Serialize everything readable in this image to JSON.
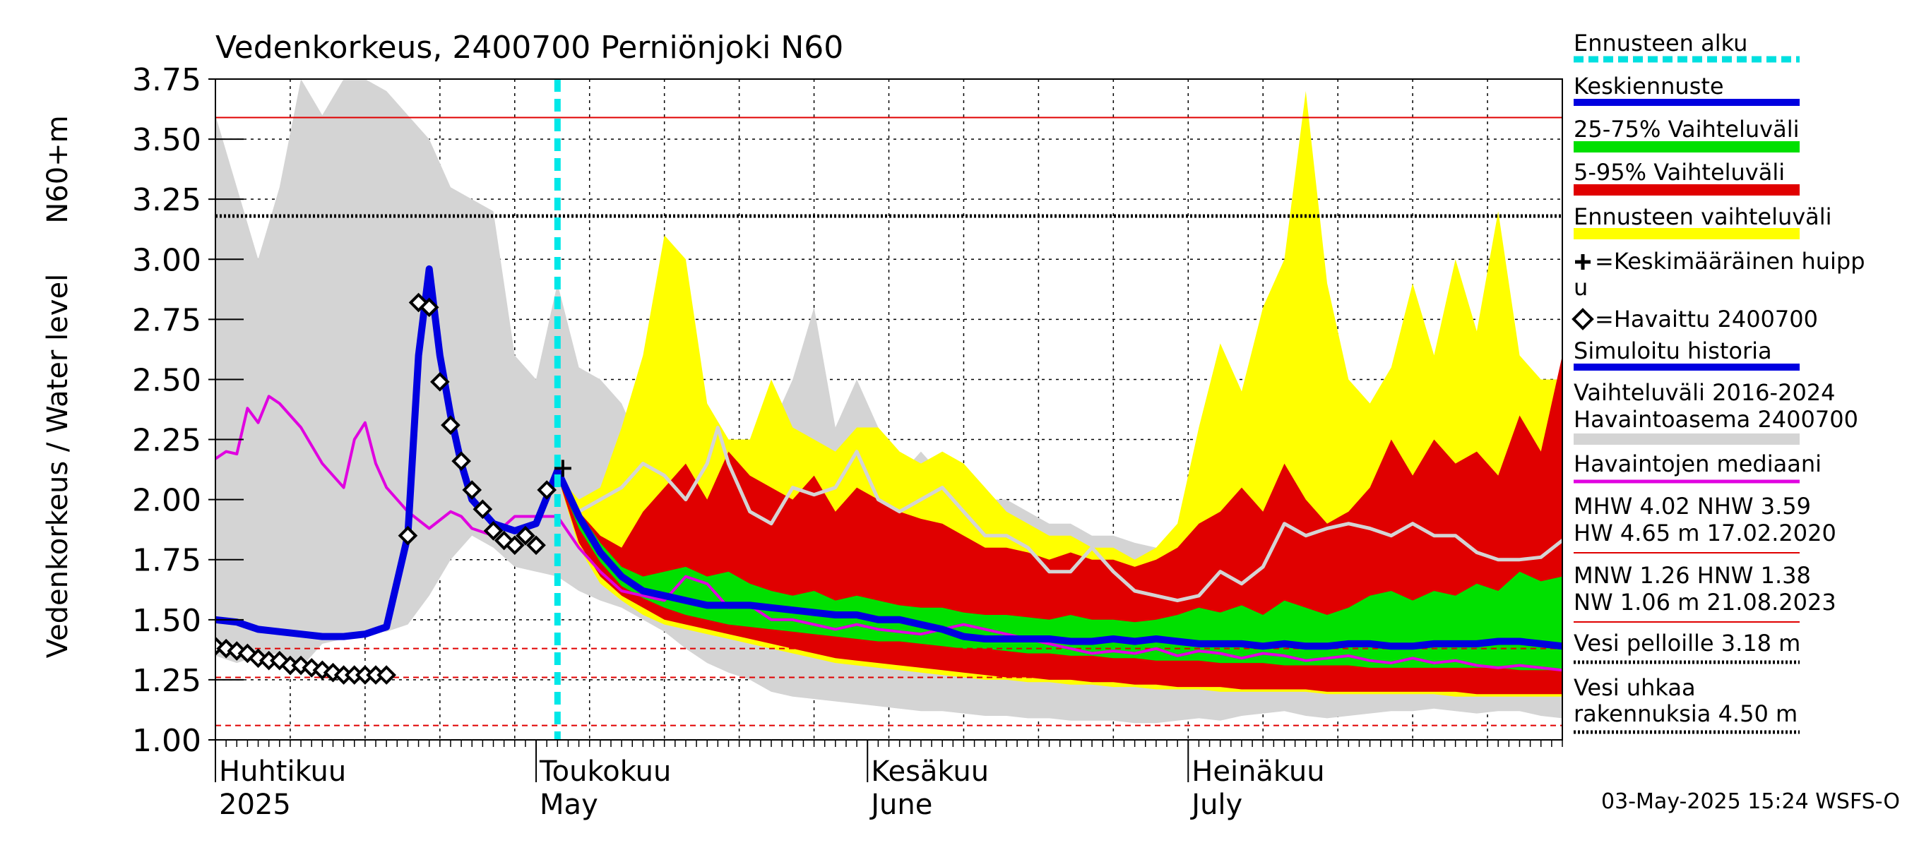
{
  "chart_data": {
    "type": "area",
    "title": "Vedenkorkeus, 2400700 Perniönjoki N60",
    "ylabel": "Vedenkorkeus / Water level",
    "ylabel_unit": "N60+m",
    "ylim": [
      1.0,
      3.75
    ],
    "y_ticks": [
      "1.00",
      "1.25",
      "1.50",
      "1.75",
      "2.00",
      "2.25",
      "2.50",
      "2.75",
      "3.00",
      "3.25",
      "3.50",
      "3.75"
    ],
    "xlim_days": [
      0,
      126
    ],
    "x_month_labels": [
      {
        "day": 0,
        "fi": "Huhtikuu",
        "en": "2025"
      },
      {
        "day": 30,
        "fi": "Toukokuu",
        "en": "May"
      },
      {
        "day": 61,
        "fi": "Kesäkuu",
        "en": "June"
      },
      {
        "day": 91,
        "fi": "Heinäkuu",
        "en": "July"
      }
    ],
    "forecast_start_day": 32,
    "reference_lines": [
      {
        "name": "NHW",
        "value": 3.59,
        "color": "#e00000",
        "style": "solid"
      },
      {
        "name": "Vesi pelloille",
        "value": 3.18,
        "color": "#000000",
        "style": "dotted"
      },
      {
        "name": "HNW",
        "value": 1.38,
        "color": "#e00000",
        "style": "dashed"
      },
      {
        "name": "MNW",
        "value": 1.26,
        "color": "#e00000",
        "style": "dashed"
      },
      {
        "name": "NW",
        "value": 1.06,
        "color": "#e00000",
        "style": "dashed"
      }
    ],
    "history_range": {
      "x": [
        0,
        2,
        4,
        6,
        8,
        10,
        12,
        14,
        16,
        18,
        20,
        22,
        24,
        26,
        28,
        30,
        32,
        34,
        36,
        38,
        40,
        42,
        44,
        46,
        48,
        50,
        52,
        54,
        56,
        58,
        60,
        62,
        64,
        66,
        68,
        70,
        72,
        74,
        76,
        78,
        80,
        82,
        84,
        86,
        88,
        90,
        92,
        94,
        96,
        98,
        100,
        102,
        104,
        106,
        108,
        110,
        112,
        114,
        116,
        118,
        120,
        122,
        124,
        126
      ],
      "lower": [
        1.35,
        1.32,
        1.35,
        1.36,
        1.3,
        1.4,
        1.42,
        1.45,
        1.45,
        1.48,
        1.6,
        1.75,
        1.85,
        1.8,
        1.72,
        1.7,
        1.68,
        1.62,
        1.58,
        1.55,
        1.5,
        1.45,
        1.38,
        1.32,
        1.28,
        1.25,
        1.2,
        1.18,
        1.17,
        1.16,
        1.15,
        1.14,
        1.13,
        1.12,
        1.12,
        1.11,
        1.1,
        1.1,
        1.09,
        1.09,
        1.08,
        1.08,
        1.08,
        1.07,
        1.07,
        1.08,
        1.09,
        1.08,
        1.1,
        1.11,
        1.12,
        1.1,
        1.09,
        1.1,
        1.11,
        1.12,
        1.12,
        1.13,
        1.12,
        1.11,
        1.12,
        1.12,
        1.1,
        1.09
      ],
      "upper": [
        3.6,
        3.3,
        3.0,
        3.3,
        3.75,
        3.6,
        3.75,
        3.75,
        3.7,
        3.6,
        3.5,
        3.3,
        3.25,
        3.2,
        2.6,
        2.5,
        2.9,
        2.55,
        2.5,
        2.4,
        2.2,
        2.15,
        2.12,
        2.1,
        2.2,
        2.15,
        2.3,
        2.5,
        2.8,
        2.3,
        2.5,
        2.3,
        2.1,
        2.2,
        2.1,
        2.05,
        2.0,
        2.0,
        1.95,
        1.9,
        1.9,
        1.85,
        1.85,
        1.82,
        1.8,
        1.85,
        1.9,
        1.85,
        1.8,
        1.78,
        1.75,
        1.8,
        1.78,
        1.75,
        1.72,
        1.72,
        1.7,
        1.72,
        1.7,
        1.68,
        1.7,
        1.72,
        1.68,
        1.7
      ]
    },
    "forecast_range": {
      "x": [
        32,
        34,
        36,
        38,
        40,
        42,
        44,
        46,
        48,
        50,
        52,
        54,
        56,
        58,
        60,
        62,
        64,
        66,
        68,
        70,
        72,
        74,
        76,
        78,
        80,
        82,
        84,
        86,
        88,
        90,
        92,
        94,
        96,
        98,
        100,
        102,
        104,
        106,
        108,
        110,
        112,
        114,
        116,
        118,
        120,
        122,
        124,
        126
      ],
      "lower": [
        2.1,
        1.8,
        1.65,
        1.58,
        1.52,
        1.48,
        1.46,
        1.44,
        1.42,
        1.4,
        1.38,
        1.36,
        1.34,
        1.32,
        1.31,
        1.3,
        1.29,
        1.28,
        1.27,
        1.26,
        1.25,
        1.25,
        1.24,
        1.24,
        1.23,
        1.23,
        1.22,
        1.22,
        1.21,
        1.21,
        1.21,
        1.2,
        1.2,
        1.2,
        1.2,
        1.2,
        1.19,
        1.19,
        1.19,
        1.19,
        1.19,
        1.19,
        1.18,
        1.18,
        1.18,
        1.18,
        1.18,
        1.18
      ],
      "upper": [
        2.1,
        2.0,
        2.05,
        2.3,
        2.6,
        3.1,
        3.0,
        2.4,
        2.25,
        2.25,
        2.5,
        2.3,
        2.25,
        2.2,
        2.3,
        2.3,
        2.2,
        2.15,
        2.2,
        2.15,
        2.05,
        1.95,
        1.9,
        1.85,
        1.85,
        1.8,
        1.8,
        1.75,
        1.8,
        1.9,
        2.3,
        2.65,
        2.45,
        2.8,
        3.0,
        3.7,
        2.9,
        2.5,
        2.4,
        2.55,
        2.9,
        2.6,
        3.0,
        2.7,
        3.2,
        2.6,
        2.5,
        2.5
      ]
    },
    "p5_95_range": {
      "x": [
        32,
        34,
        36,
        38,
        40,
        42,
        44,
        46,
        48,
        50,
        52,
        54,
        56,
        58,
        60,
        62,
        64,
        66,
        68,
        70,
        72,
        74,
        76,
        78,
        80,
        82,
        84,
        86,
        88,
        90,
        92,
        94,
        96,
        98,
        100,
        102,
        104,
        106,
        108,
        110,
        112,
        114,
        116,
        118,
        120,
        122,
        124,
        126
      ],
      "lower": [
        2.1,
        1.82,
        1.68,
        1.6,
        1.55,
        1.5,
        1.48,
        1.46,
        1.44,
        1.42,
        1.4,
        1.38,
        1.36,
        1.34,
        1.33,
        1.32,
        1.31,
        1.3,
        1.29,
        1.28,
        1.27,
        1.26,
        1.26,
        1.25,
        1.25,
        1.24,
        1.24,
        1.23,
        1.23,
        1.22,
        1.22,
        1.22,
        1.21,
        1.21,
        1.21,
        1.21,
        1.2,
        1.2,
        1.2,
        1.2,
        1.2,
        1.2,
        1.2,
        1.19,
        1.19,
        1.19,
        1.19,
        1.19
      ],
      "upper": [
        2.1,
        1.95,
        1.85,
        1.8,
        1.95,
        2.05,
        2.15,
        2.0,
        2.2,
        2.1,
        2.05,
        2.0,
        2.1,
        1.95,
        2.05,
        2.0,
        1.95,
        1.92,
        1.9,
        1.85,
        1.8,
        1.8,
        1.78,
        1.75,
        1.78,
        1.75,
        1.75,
        1.72,
        1.75,
        1.8,
        1.9,
        1.95,
        2.05,
        1.95,
        2.15,
        2.0,
        1.9,
        1.95,
        2.05,
        2.25,
        2.1,
        2.25,
        2.15,
        2.2,
        2.1,
        2.35,
        2.2,
        2.6
      ]
    },
    "p25_75_range": {
      "x": [
        32,
        34,
        36,
        38,
        40,
        42,
        44,
        46,
        48,
        50,
        52,
        54,
        56,
        58,
        60,
        62,
        64,
        66,
        68,
        70,
        72,
        74,
        76,
        78,
        80,
        82,
        84,
        86,
        88,
        90,
        92,
        94,
        96,
        98,
        100,
        102,
        104,
        106,
        108,
        110,
        112,
        114,
        116,
        118,
        120,
        122,
        124,
        126
      ],
      "lower": [
        2.1,
        1.88,
        1.74,
        1.64,
        1.59,
        1.55,
        1.52,
        1.5,
        1.48,
        1.47,
        1.46,
        1.45,
        1.44,
        1.43,
        1.42,
        1.41,
        1.41,
        1.4,
        1.39,
        1.38,
        1.38,
        1.37,
        1.36,
        1.36,
        1.35,
        1.35,
        1.34,
        1.34,
        1.33,
        1.33,
        1.33,
        1.32,
        1.32,
        1.32,
        1.31,
        1.31,
        1.31,
        1.31,
        1.3,
        1.3,
        1.3,
        1.3,
        1.3,
        1.3,
        1.3,
        1.29,
        1.29,
        1.29
      ],
      "upper": [
        2.1,
        1.95,
        1.82,
        1.72,
        1.68,
        1.7,
        1.72,
        1.68,
        1.7,
        1.65,
        1.62,
        1.6,
        1.62,
        1.58,
        1.6,
        1.58,
        1.56,
        1.55,
        1.55,
        1.53,
        1.52,
        1.52,
        1.51,
        1.5,
        1.52,
        1.5,
        1.5,
        1.49,
        1.5,
        1.52,
        1.55,
        1.53,
        1.56,
        1.52,
        1.58,
        1.55,
        1.52,
        1.55,
        1.6,
        1.62,
        1.58,
        1.62,
        1.6,
        1.65,
        1.62,
        1.7,
        1.66,
        1.68
      ]
    },
    "series": [
      {
        "name": "Keskiennuste",
        "color": "#0000e0",
        "x": [
          0,
          2,
          4,
          6,
          8,
          10,
          12,
          14,
          16,
          18,
          19,
          20,
          21,
          22,
          23,
          24,
          26,
          28,
          30,
          32,
          34,
          36,
          38,
          40,
          42,
          44,
          46,
          48,
          50,
          52,
          54,
          56,
          58,
          60,
          62,
          64,
          66,
          68,
          70,
          72,
          74,
          76,
          78,
          80,
          82,
          84,
          86,
          88,
          90,
          92,
          94,
          96,
          98,
          100,
          102,
          104,
          106,
          108,
          110,
          112,
          114,
          116,
          118,
          120,
          122,
          124,
          126
        ],
        "values": [
          1.5,
          1.49,
          1.46,
          1.45,
          1.44,
          1.43,
          1.43,
          1.44,
          1.47,
          1.85,
          2.6,
          2.96,
          2.6,
          2.35,
          2.15,
          2.0,
          1.9,
          1.87,
          1.9,
          2.12,
          1.93,
          1.78,
          1.68,
          1.62,
          1.6,
          1.58,
          1.56,
          1.56,
          1.56,
          1.55,
          1.54,
          1.53,
          1.52,
          1.52,
          1.5,
          1.5,
          1.48,
          1.46,
          1.43,
          1.42,
          1.42,
          1.42,
          1.42,
          1.41,
          1.41,
          1.42,
          1.41,
          1.42,
          1.41,
          1.4,
          1.4,
          1.4,
          1.39,
          1.4,
          1.39,
          1.39,
          1.4,
          1.4,
          1.39,
          1.39,
          1.4,
          1.4,
          1.4,
          1.41,
          1.41,
          1.4,
          1.39
        ]
      },
      {
        "name": "Havaintojen mediaani",
        "color": "#e000e0",
        "x": [
          0,
          1,
          2,
          3,
          4,
          5,
          6,
          8,
          10,
          12,
          13,
          14,
          15,
          16,
          18,
          20,
          22,
          23,
          24,
          26,
          28,
          30,
          32,
          34,
          36,
          38,
          40,
          42,
          44,
          46,
          48,
          50,
          52,
          54,
          56,
          58,
          60,
          62,
          64,
          66,
          68,
          70,
          72,
          74,
          76,
          78,
          80,
          82,
          84,
          86,
          88,
          90,
          92,
          94,
          96,
          98,
          100,
          102,
          104,
          106,
          108,
          110,
          112,
          114,
          116,
          118,
          120,
          122,
          124,
          126
        ],
        "values": [
          2.17,
          2.2,
          2.19,
          2.38,
          2.32,
          2.43,
          2.4,
          2.3,
          2.15,
          2.05,
          2.25,
          2.32,
          2.15,
          2.05,
          1.95,
          1.88,
          1.95,
          1.93,
          1.88,
          1.85,
          1.93,
          1.93,
          1.93,
          1.8,
          1.7,
          1.62,
          1.6,
          1.58,
          1.68,
          1.65,
          1.55,
          1.56,
          1.5,
          1.5,
          1.48,
          1.46,
          1.48,
          1.46,
          1.45,
          1.44,
          1.46,
          1.48,
          1.46,
          1.44,
          1.42,
          1.4,
          1.38,
          1.36,
          1.37,
          1.36,
          1.38,
          1.35,
          1.37,
          1.36,
          1.34,
          1.36,
          1.35,
          1.33,
          1.34,
          1.35,
          1.33,
          1.32,
          1.34,
          1.32,
          1.33,
          1.31,
          1.3,
          1.31,
          1.3,
          1.29
        ]
      },
      {
        "name": "Vaihteluväli 2016-2024 median",
        "color": "#d4d4d4",
        "x": [
          32,
          34,
          36,
          38,
          40,
          42,
          44,
          46,
          47,
          48,
          50,
          52,
          54,
          56,
          58,
          60,
          62,
          64,
          66,
          68,
          70,
          72,
          74,
          76,
          78,
          80,
          82,
          84,
          86,
          88,
          90,
          92,
          94,
          96,
          98,
          100,
          102,
          104,
          106,
          108,
          110,
          112,
          114,
          116,
          118,
          120,
          122,
          124,
          126
        ],
        "values": [
          2.1,
          1.95,
          2.0,
          2.05,
          2.15,
          2.1,
          2.0,
          2.15,
          2.3,
          2.15,
          1.95,
          1.9,
          2.05,
          2.02,
          2.05,
          2.2,
          2.0,
          1.95,
          2.0,
          2.05,
          1.95,
          1.85,
          1.85,
          1.8,
          1.7,
          1.7,
          1.8,
          1.7,
          1.62,
          1.6,
          1.58,
          1.6,
          1.7,
          1.65,
          1.72,
          1.9,
          1.85,
          1.88,
          1.9,
          1.88,
          1.85,
          1.9,
          1.85,
          1.85,
          1.78,
          1.75,
          1.75,
          1.76,
          1.83
        ]
      }
    ],
    "observed": {
      "name": "Havaittu 2400700",
      "x": [
        0,
        1,
        2,
        3,
        4,
        5,
        6,
        7,
        8,
        9,
        10,
        11,
        12,
        13,
        14,
        15,
        16,
        18,
        19,
        20,
        21,
        22,
        23,
        24,
        25,
        26,
        27,
        28,
        29,
        30,
        31
      ],
      "values": [
        1.39,
        1.38,
        1.37,
        1.36,
        1.34,
        1.33,
        1.33,
        1.31,
        1.31,
        1.3,
        1.29,
        1.28,
        1.27,
        1.27,
        1.27,
        1.27,
        1.27,
        1.85,
        2.82,
        2.8,
        2.49,
        2.31,
        2.16,
        2.04,
        1.96,
        1.87,
        1.83,
        1.81,
        1.85,
        1.81,
        2.04
      ]
    },
    "peak_marker": {
      "day": 32.5,
      "value": 2.13
    },
    "legend": [
      {
        "label": "Ennusteen alku",
        "color": "#00e0e0",
        "style": "dashed"
      },
      {
        "label": "Keskiennuste",
        "color": "#0000e0",
        "style": "solid"
      },
      {
        "label": "25-75% Vaihteluväli",
        "color": "#00e000",
        "style": "solid"
      },
      {
        "label": "5-95% Vaihteluväli",
        "color": "#e00000",
        "style": "solid"
      },
      {
        "label": "Ennusteen vaihteluväli",
        "color": "#ffff00",
        "style": "solid"
      },
      {
        "label": "=Keskimääräinen huipp",
        "label2": "u",
        "marker": "cross"
      },
      {
        "label": "=Havaittu 2400700",
        "marker": "diamond"
      },
      {
        "label": "Simuloitu historia",
        "color": "#0000e0",
        "style": "solid"
      },
      {
        "label": "Vaihteluväli 2016-2024",
        "label2": " Havaintoasema 2400700",
        "color": "#d4d4d4",
        "style": "solid"
      },
      {
        "label": "Havaintojen mediaani",
        "color": "#e000e0",
        "style": "solid"
      }
    ],
    "stats": [
      {
        "line1": "MHW   4.02 NHW   3.59",
        "line2": "HW   4.65 m 17.02.2020",
        "color": "#e00000"
      },
      {
        "line1": "MNW   1.26 HNW   1.38",
        "line2": "NW   1.06 m 21.08.2023",
        "color": "#e00000"
      }
    ],
    "thresholds": [
      {
        "line1": "Vesi pelloille 3.18 m"
      },
      {
        "line1": "Vesi uhkaa",
        "line2": "rakennuksia 4.50 m"
      }
    ],
    "footer": "03-May-2025 15:24 WSFS-O"
  }
}
